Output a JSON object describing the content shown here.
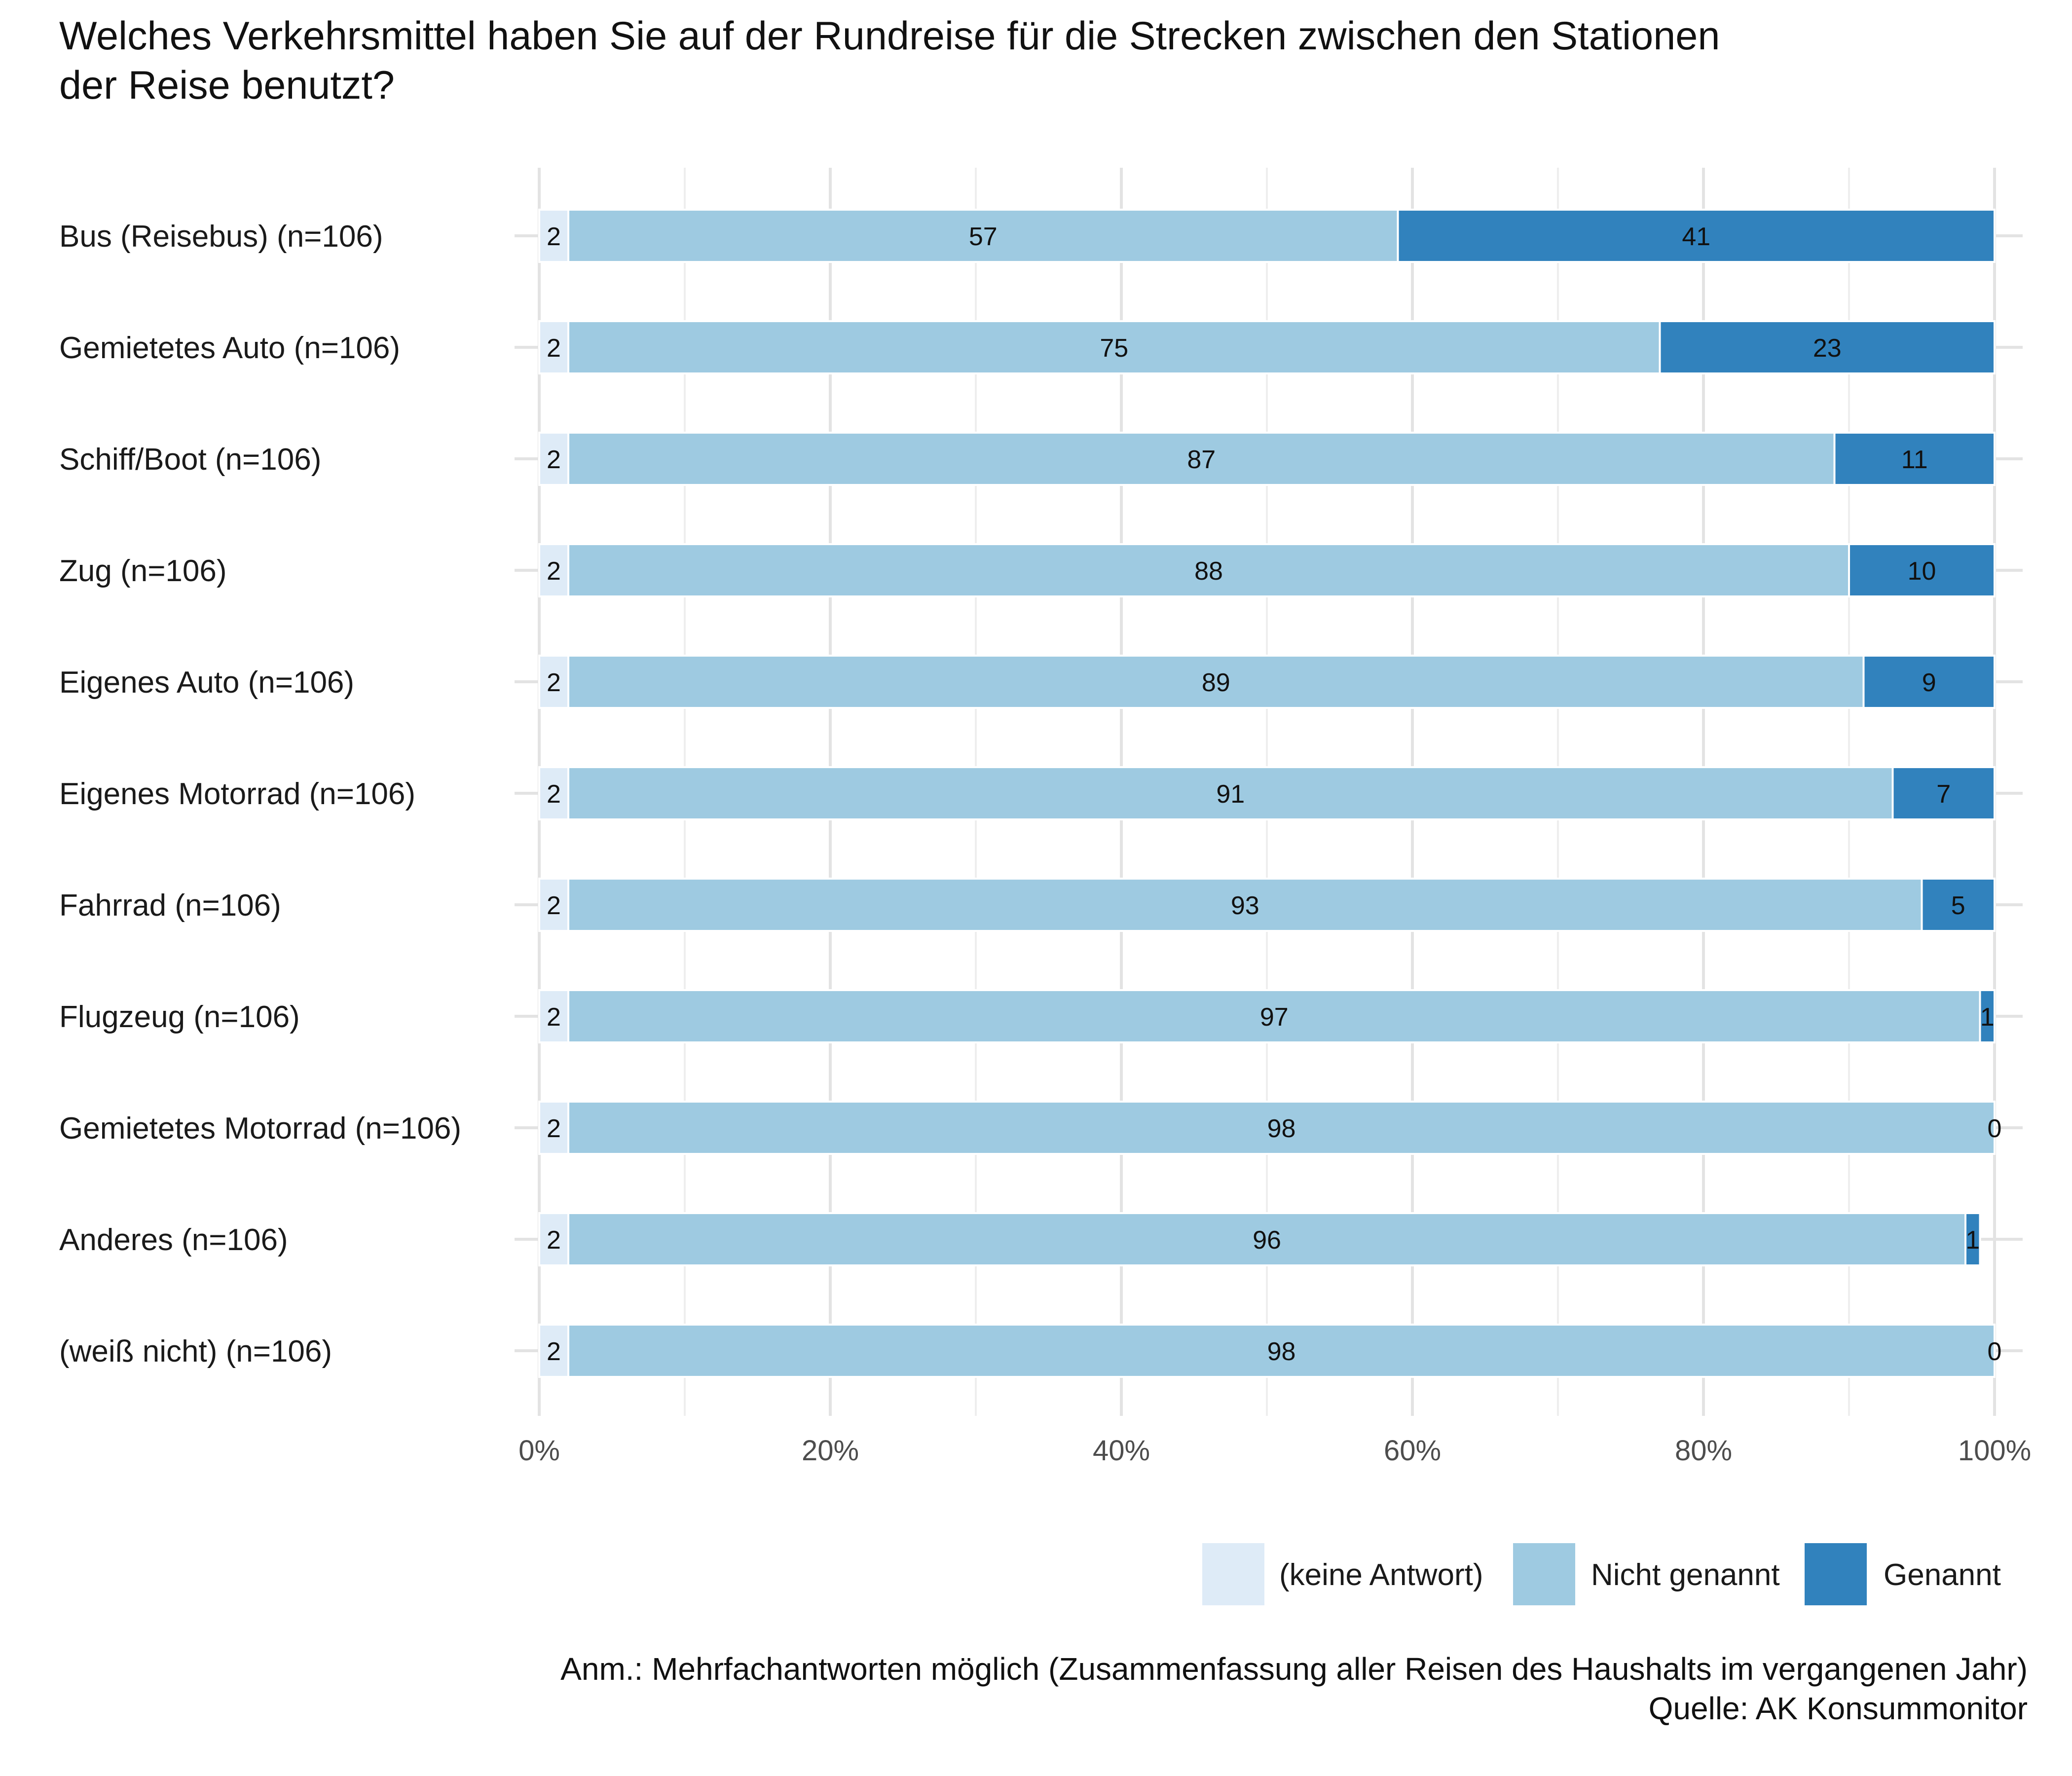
{
  "chart_data": {
    "type": "bar",
    "orientation": "horizontal",
    "stacked": true,
    "title": "Welches Verkehrsmittel haben Sie auf der Rundreise für die Strecken zwischen den Stationen der Reise benutzt?",
    "title_lines": [
      "Welches Verkehrsmittel haben Sie auf der Rundreise für die Strecken zwischen den Stationen",
      "der Reise benutzt?"
    ],
    "xlabel": "",
    "ylabel": "",
    "xlim": [
      0,
      100
    ],
    "x_ticks": [
      "0%",
      "20%",
      "40%",
      "60%",
      "80%",
      "100%"
    ],
    "grid": true,
    "legend_position": "bottom-right",
    "categories": [
      "Bus (Reisebus) (n=106)",
      "Gemietetes Auto (n=106)",
      "Schiff/Boot (n=106)",
      "Zug (n=106)",
      "Eigenes Auto (n=106)",
      "Eigenes Motorrad (n=106)",
      "Fahrrad (n=106)",
      "Flugzeug (n=106)",
      "Gemietetes Motorrad (n=106)",
      "Anderes (n=106)",
      "(weiß nicht) (n=106)"
    ],
    "series": [
      {
        "name": "(keine Antwort)",
        "color": "#deebf7",
        "values": [
          2,
          2,
          2,
          2,
          2,
          2,
          2,
          2,
          2,
          2,
          2
        ]
      },
      {
        "name": "Nicht genannt",
        "color": "#9ecae1",
        "values": [
          57,
          75,
          87,
          88,
          89,
          91,
          93,
          97,
          98,
          96,
          98
        ]
      },
      {
        "name": "Genannt",
        "color": "#3182bd",
        "values": [
          41,
          23,
          11,
          10,
          9,
          7,
          5,
          1,
          0,
          1,
          0
        ]
      }
    ],
    "notes": [
      "Anm.: Mehrfachantworten möglich (Zusammenfassung aller Reisen des Haushalts im vergangenen Jahr)",
      "Quelle: AK Konsummonitor"
    ]
  }
}
